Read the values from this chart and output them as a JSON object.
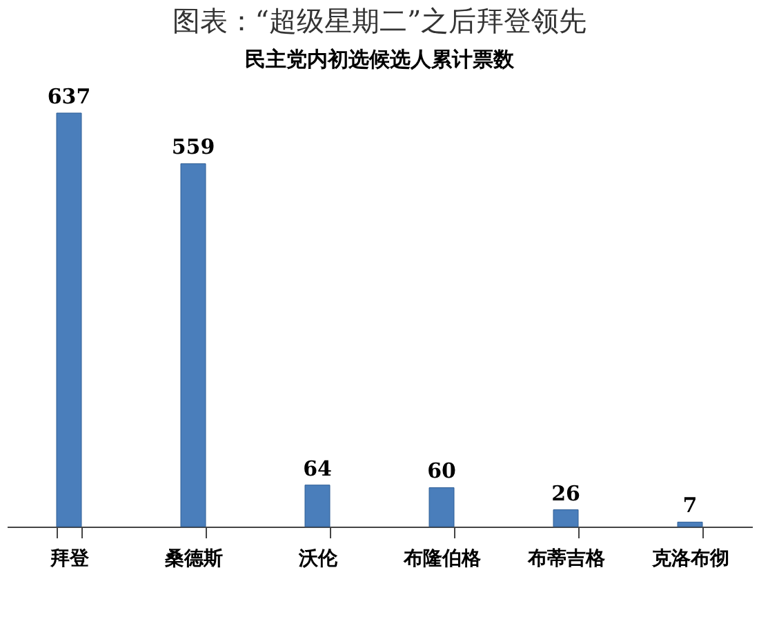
{
  "chart_data": {
    "type": "bar",
    "title": "图表：“超级星期二”之后拜登领先",
    "subtitle": "民主党内初选候选人累计票数",
    "categories": [
      "拜登",
      "桑德斯",
      "沃伦",
      "布隆伯格",
      "布蒂吉格",
      "克洛布彻"
    ],
    "values": [
      637,
      559,
      64,
      60,
      26,
      7
    ],
    "color": "#4a7ebb",
    "data_labels": true,
    "tick_labels": "x"
  }
}
